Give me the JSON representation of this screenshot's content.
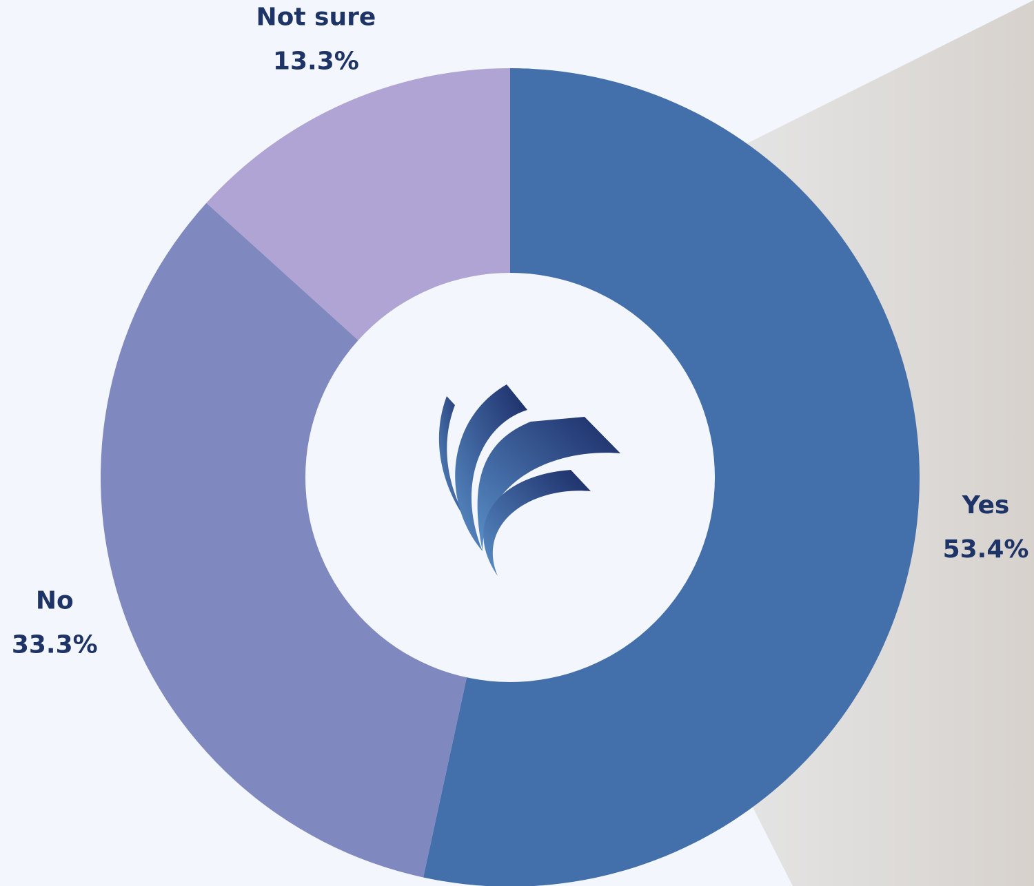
{
  "chart_data": {
    "type": "donut",
    "categories": [
      "Yes",
      "No",
      "Not sure"
    ],
    "values": [
      53.4,
      33.3,
      13.3
    ],
    "value_labels": [
      "53.4%",
      "33.3%",
      "13.3%"
    ],
    "colors": [
      "#436faa",
      "#7f88bf",
      "#afa4d4"
    ]
  }
}
